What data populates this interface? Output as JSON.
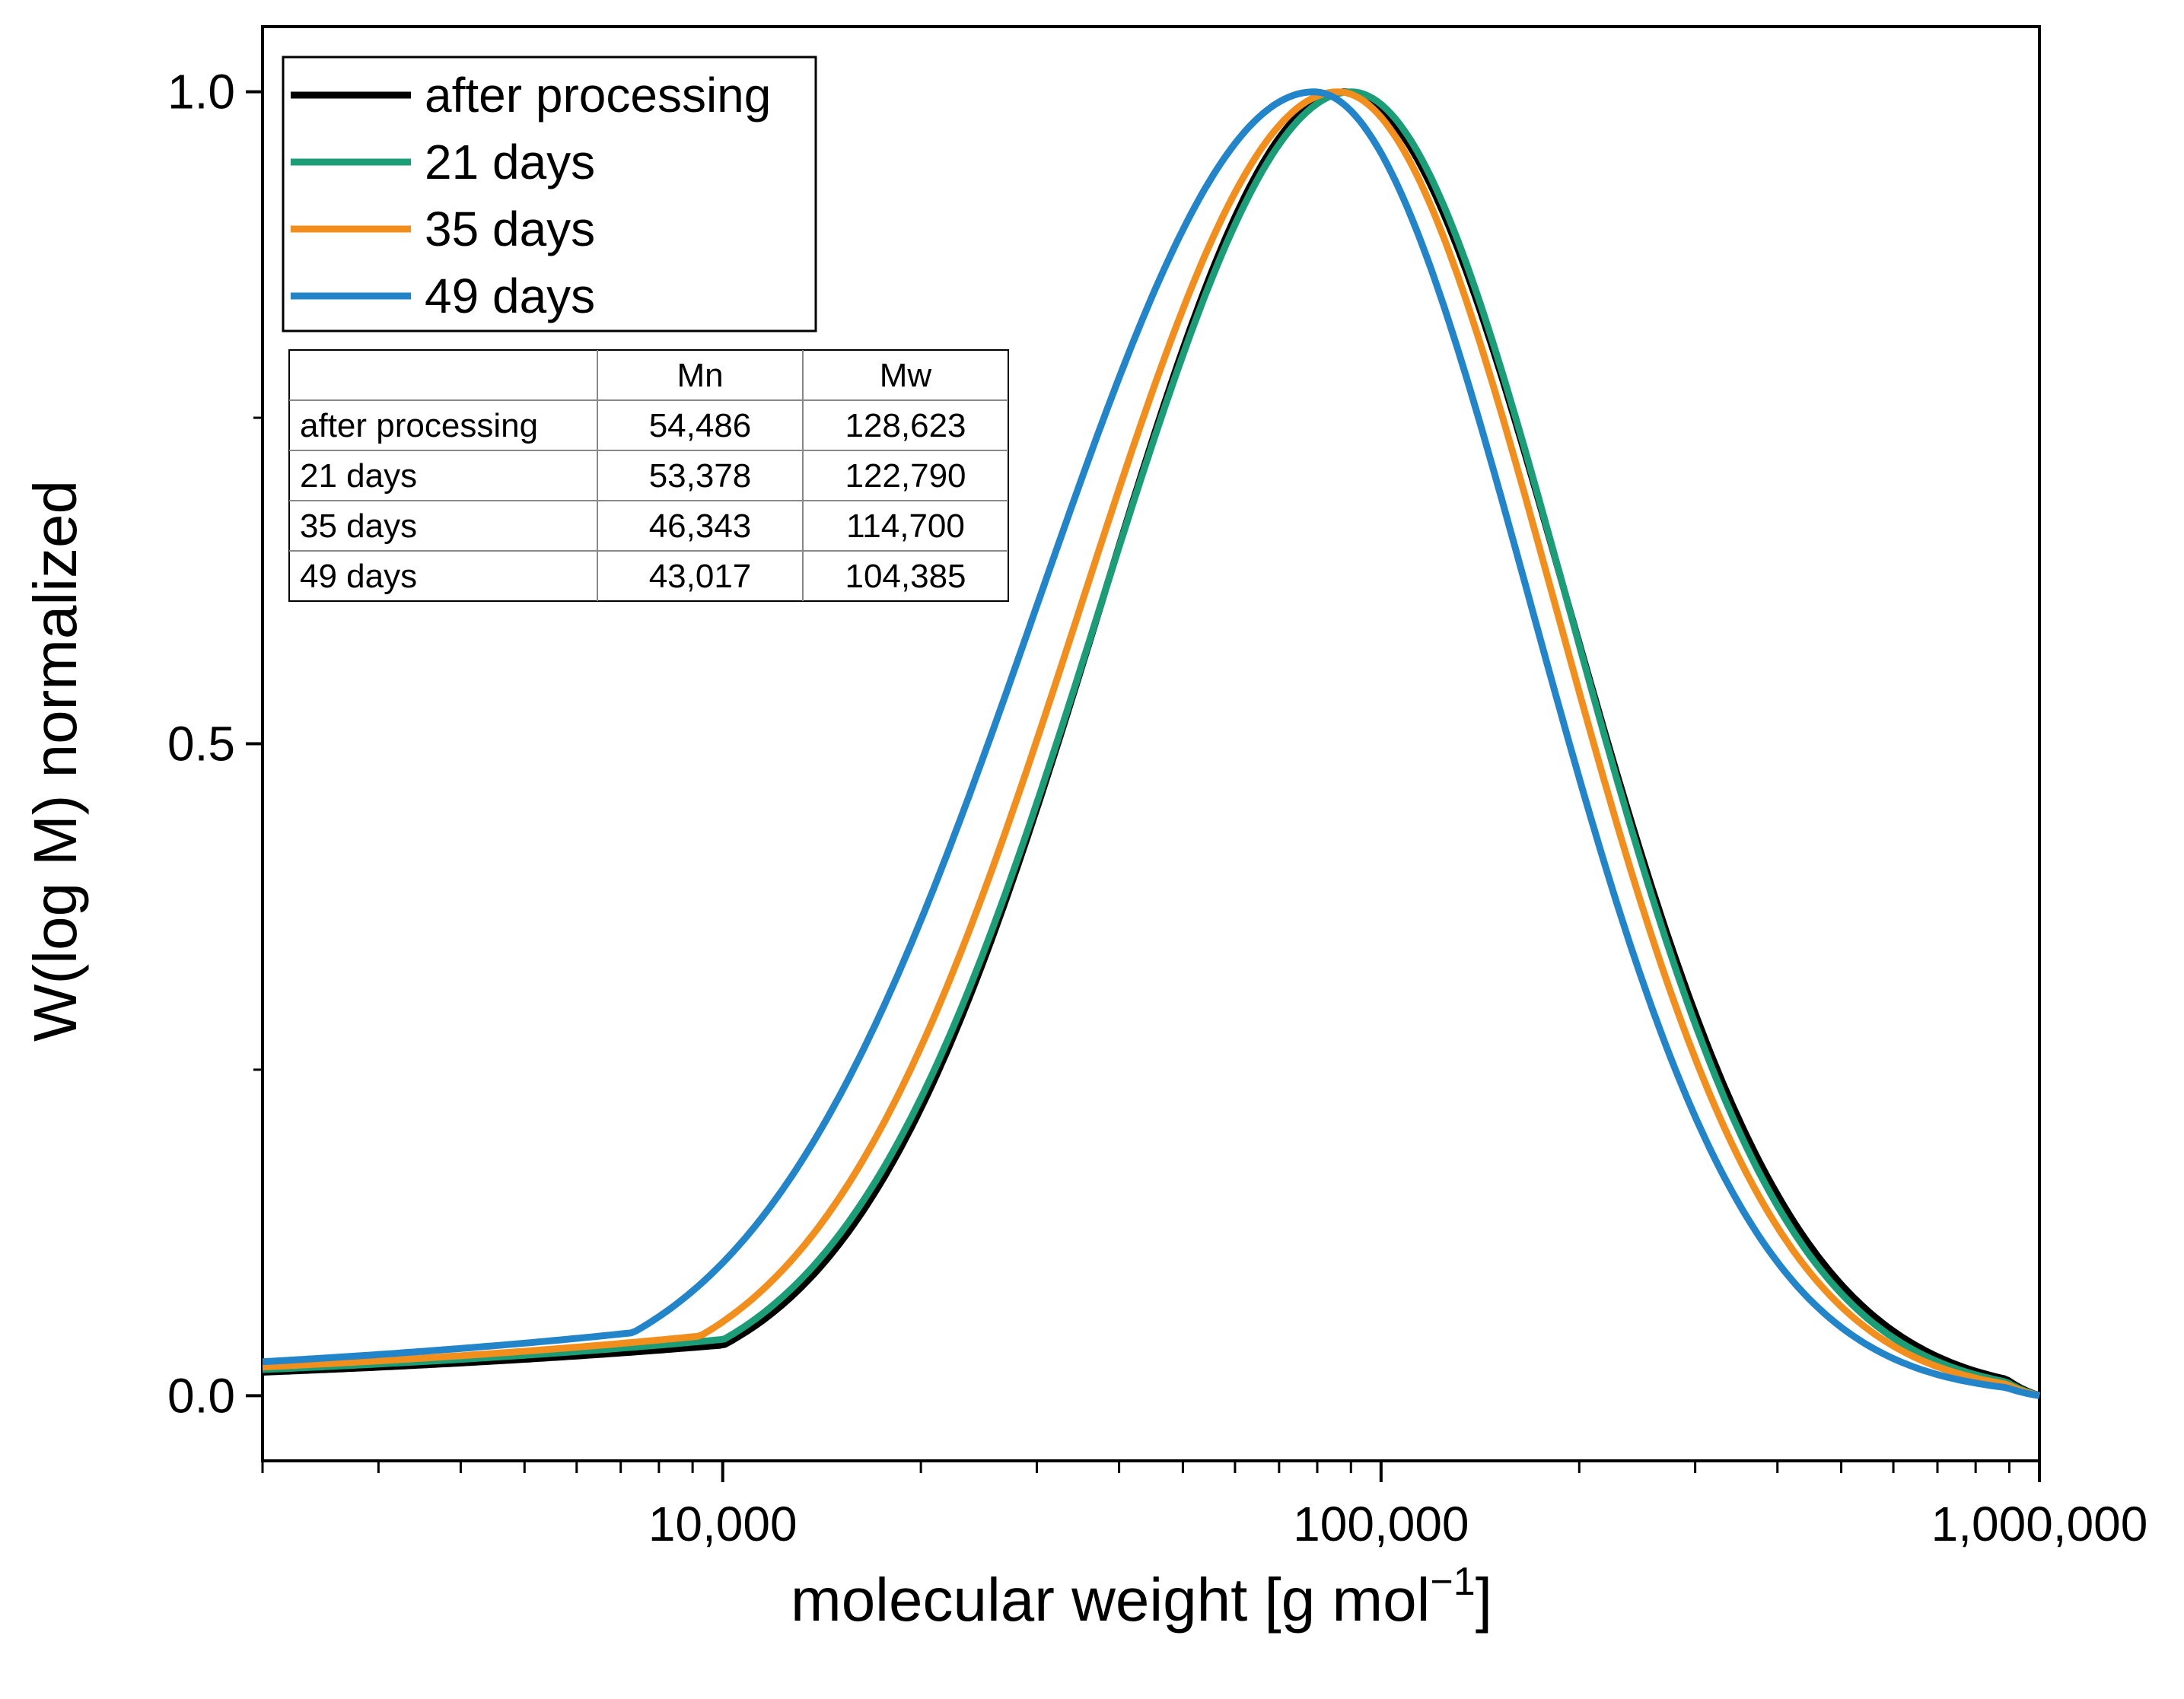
{
  "chart_data": {
    "type": "line",
    "xlabel": "molecular weight [g mol",
    "xlabel_exp": "−1",
    "xlabel_close": "]",
    "ylabel": "W(log M) normalized",
    "x_scale": "log",
    "xlim": [
      2000,
      1000000
    ],
    "ylim": [
      -0.05,
      1.05
    ],
    "x_ticks": [
      {
        "value": 10000,
        "label": "10,000"
      },
      {
        "value": 100000,
        "label": "100,000"
      },
      {
        "value": 1000000,
        "label": "1,000,000"
      }
    ],
    "y_ticks": [
      {
        "value": 0.0,
        "label": "0.0"
      },
      {
        "value": 0.5,
        "label": "0.5"
      },
      {
        "value": 1.0,
        "label": "1.0"
      }
    ],
    "y_minor_ticks": [
      0.25,
      0.75
    ],
    "legend": {
      "position": "top-left"
    },
    "series": [
      {
        "name": "after processing",
        "color": "#000000",
        "peak_M": 88000,
        "width_left": 0.37,
        "width_right": 0.34,
        "tail": 0.018
      },
      {
        "name": "21 days",
        "color": "#1b9e77",
        "peak_M": 90000,
        "width_left": 0.38,
        "width_right": 0.33,
        "tail": 0.02
      },
      {
        "name": "35 days",
        "color": "#f28e1c",
        "peak_M": 86000,
        "width_left": 0.39,
        "width_right": 0.33,
        "tail": 0.022
      },
      {
        "name": "49 days",
        "color": "#2385c9",
        "peak_M": 79000,
        "width_left": 0.42,
        "width_right": 0.33,
        "tail": 0.026
      }
    ],
    "table": {
      "headers": [
        "",
        "Mn",
        "Mw"
      ],
      "rows": [
        [
          "after processing",
          "54,486",
          "128,623"
        ],
        [
          "21 days",
          "53,378",
          "122,790"
        ],
        [
          "35 days",
          "46,343",
          "114,700"
        ],
        [
          "49 days",
          "43,017",
          "104,385"
        ]
      ]
    }
  }
}
